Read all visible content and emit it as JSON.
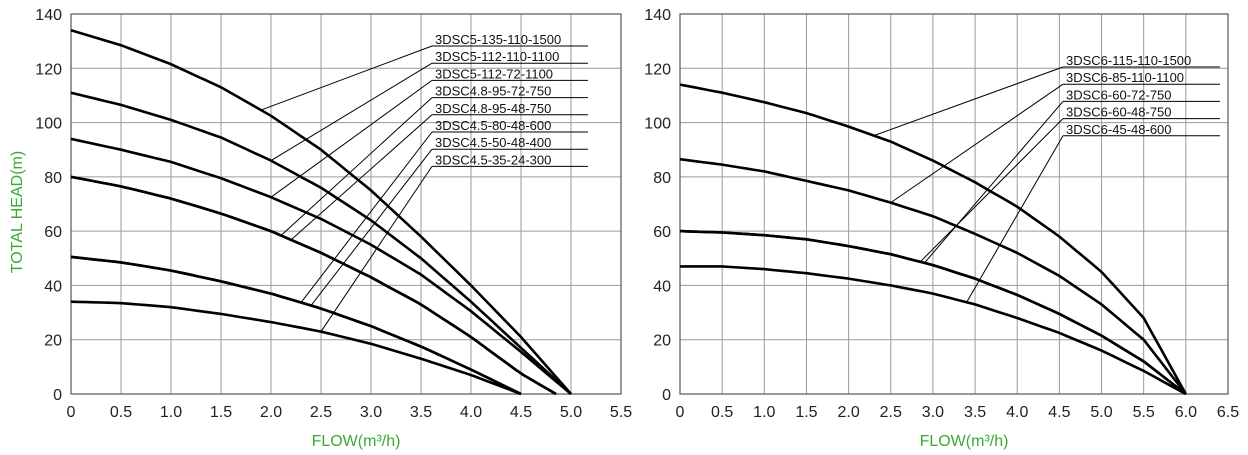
{
  "chart_data": [
    {
      "type": "line",
      "xlabel": "FLOW(m³/h)",
      "ylabel": "TOTAL HEAD(m)",
      "xlim": [
        0,
        5.5
      ],
      "ylim": [
        0,
        140
      ],
      "x_ticks": [
        "0",
        "0.5",
        "1.0",
        "1.5",
        "2.0",
        "2.5",
        "3.0",
        "3.5",
        "4.0",
        "4.5",
        "5.0",
        "5.5"
      ],
      "y_ticks": [
        "0",
        "20",
        "40",
        "60",
        "80",
        "100",
        "120",
        "140"
      ],
      "grid": true,
      "series": [
        {
          "name": "3DSC5-135-110-1500",
          "max_flow": 5.0,
          "x": [
            0,
            0.5,
            1.0,
            1.5,
            2.0,
            2.5,
            3.0,
            3.5,
            4.0,
            4.5,
            5.0
          ],
          "y": [
            134,
            128.5,
            121.5,
            113,
            102.5,
            90,
            75,
            58,
            40,
            21,
            0
          ]
        },
        {
          "name": "3DSC5-112-110-1100",
          "max_flow": 5.0,
          "x": [
            0,
            0.5,
            1.0,
            1.5,
            2.0,
            2.5,
            3.0,
            3.5,
            4.0,
            4.5,
            5.0
          ],
          "y": [
            111,
            106.5,
            101,
            94.5,
            86,
            76,
            64,
            50,
            34,
            17,
            0
          ]
        },
        {
          "name": "3DSC5-112-72-1100",
          "max_flow": 5.0,
          "x": [
            0,
            0.5,
            1.0,
            1.5,
            2.0,
            2.5,
            3.0,
            3.5,
            4.0,
            4.5,
            5.0
          ],
          "y": [
            94,
            90,
            85.5,
            79.5,
            72.5,
            64.5,
            55,
            44,
            30.5,
            15.5,
            0
          ]
        },
        {
          "name": "3DSC4.8-95-72-750",
          "max_flow": 4.85,
          "x": [
            0,
            0.5,
            1.0,
            1.5,
            2.0,
            2.5,
            3.0,
            3.5,
            4.0,
            4.5,
            4.85
          ],
          "y": [
            80,
            76.5,
            72,
            66.5,
            60,
            52,
            43,
            33,
            21,
            7.5,
            0
          ]
        },
        {
          "name": "3DSC4.8-95-48-750",
          "max_flow": 4.85,
          "x": [
            0,
            0.5,
            1.0,
            1.5,
            2.0,
            2.5,
            3.0,
            3.5,
            4.0,
            4.5,
            4.85
          ],
          "y": [
            80,
            76.5,
            72,
            66.5,
            60,
            52,
            43,
            33,
            21,
            7.5,
            0
          ]
        },
        {
          "name": "3DSC4.5-80-48-600",
          "max_flow": 4.5,
          "x": [
            0,
            0.5,
            1.0,
            1.5,
            2.0,
            2.5,
            3.0,
            3.5,
            4.0,
            4.5
          ],
          "y": [
            50.5,
            48.5,
            45.5,
            41.5,
            37,
            31.5,
            25,
            17.5,
            9,
            0
          ]
        },
        {
          "name": "3DSC4.5-50-48-400",
          "max_flow": 4.5,
          "x": [
            0,
            0.5,
            1.0,
            1.5,
            2.0,
            2.5,
            3.0,
            3.5,
            4.0,
            4.5
          ],
          "y": [
            50.5,
            48.5,
            45.5,
            41.5,
            37,
            31.5,
            25,
            17.5,
            9,
            0
          ]
        },
        {
          "name": "3DSC4.5-35-24-300",
          "max_flow": 4.5,
          "x": [
            0,
            0.5,
            1.0,
            1.5,
            2.0,
            2.5,
            3.0,
            3.5,
            4.0,
            4.5
          ],
          "y": [
            34,
            33.5,
            32,
            29.5,
            26.5,
            23,
            18.5,
            13,
            7,
            0
          ]
        }
      ]
    },
    {
      "type": "line",
      "xlabel": "FLOW(m³/h)",
      "ylabel": "",
      "xlim": [
        0,
        6.5
      ],
      "ylim": [
        0,
        140
      ],
      "x_ticks": [
        "0",
        "0.5",
        "1.0",
        "1.5",
        "2.0",
        "2.5",
        "3.0",
        "3.5",
        "4.0",
        "4.5",
        "5.0",
        "5.5",
        "6.0",
        "6.5"
      ],
      "y_ticks": [
        "0",
        "20",
        "40",
        "60",
        "80",
        "100",
        "120",
        "140"
      ],
      "grid": true,
      "series": [
        {
          "name": "3DSC6-115-110-1500",
          "max_flow": 6.0,
          "x": [
            0,
            0.5,
            1.0,
            1.5,
            2.0,
            2.5,
            3.0,
            3.5,
            4.0,
            4.5,
            5.0,
            5.5,
            6.0
          ],
          "y": [
            114,
            111,
            107.5,
            103.5,
            98.5,
            93,
            86,
            78,
            69,
            58,
            45,
            28,
            0
          ]
        },
        {
          "name": "3DSC6-85-110-1100",
          "max_flow": 6.0,
          "x": [
            0,
            0.5,
            1.0,
            1.5,
            2.0,
            2.5,
            3.0,
            3.5,
            4.0,
            4.5,
            5.0,
            5.5,
            6.0
          ],
          "y": [
            86.5,
            84.5,
            82,
            78.5,
            75,
            70.5,
            65.5,
            59,
            52,
            43.5,
            33,
            20,
            0
          ]
        },
        {
          "name": "3DSC6-60-72-750",
          "max_flow": 6.0,
          "x": [
            0,
            0.5,
            1.0,
            1.5,
            2.0,
            2.5,
            3.0,
            3.5,
            4.0,
            4.5,
            5.0,
            5.5,
            6.0
          ],
          "y": [
            60,
            59.5,
            58.5,
            57,
            54.5,
            51.5,
            47.5,
            42.5,
            36.5,
            29.5,
            21.5,
            12,
            0
          ]
        },
        {
          "name": "3DSC6-60-48-750",
          "max_flow": 6.0,
          "x": [
            0,
            0.5,
            1.0,
            1.5,
            2.0,
            2.5,
            3.0,
            3.5,
            4.0,
            4.5,
            5.0,
            5.5,
            6.0
          ],
          "y": [
            60,
            59.5,
            58.5,
            57,
            54.5,
            51.5,
            47.5,
            42.5,
            36.5,
            29.5,
            21.5,
            12,
            0
          ]
        },
        {
          "name": "3DSC6-45-48-600",
          "max_flow": 6.0,
          "x": [
            0,
            0.5,
            1.0,
            1.5,
            2.0,
            2.5,
            3.0,
            3.5,
            4.0,
            4.5,
            5.0,
            5.5,
            6.0
          ],
          "y": [
            47,
            47,
            46,
            44.5,
            42.5,
            40,
            37,
            33,
            28,
            22.5,
            16,
            8.5,
            0
          ]
        }
      ]
    }
  ]
}
